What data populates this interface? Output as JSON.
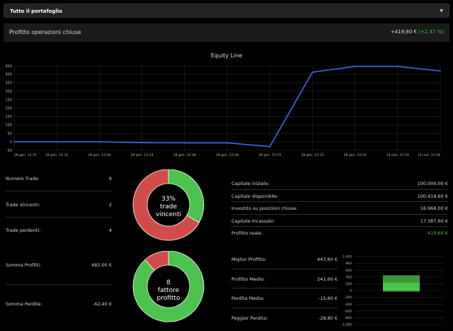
{
  "portfolio_select": {
    "value": "Tutto il portafoglio"
  },
  "closed_profit": {
    "label": "Profitto operazioni chiuse",
    "value": "+419,60 €",
    "pct": "(+2,47 %)"
  },
  "chart_data": {
    "type": "line",
    "title": "Equity Line",
    "x": [
      "28 gen. 12:31",
      "28 gen. 12:32",
      "28 gen. 12:34",
      "28 gen. 12:34",
      "28 gen. 12:36",
      "28 gen. 12:39",
      "28 gen. 15:15",
      "28 gen. 15:15",
      "28 gen. 15:16",
      "14 mar. 11:54",
      "14 mar. 11:56"
    ],
    "series": [
      {
        "values": [
          0,
          0,
          0,
          -5,
          -6,
          -6,
          -28,
          413,
          447,
          447,
          420
        ]
      }
    ],
    "ylim": [
      -50,
      450
    ],
    "yticks": [
      -50,
      0,
      50,
      100,
      150,
      200,
      250,
      300,
      350,
      400,
      450
    ],
    "color": "#3d6cf0",
    "grid": true
  },
  "left_stats": [
    {
      "label": "Numero Trade:",
      "value": "6"
    },
    {
      "label": "Trade Vincenti:",
      "value": "2"
    },
    {
      "label": "Trade perdenti:",
      "value": "4"
    }
  ],
  "left_stats2": [
    {
      "label": "Somma Profitti:",
      "value": "482,00 €"
    },
    {
      "label": "Somma Perdite:",
      "value": "-62,40 €"
    }
  ],
  "donut1": {
    "pct_win": 33.33,
    "line1": "33%",
    "line2": "trade",
    "line3": "vincenti"
  },
  "donut2": {
    "pct_win": 88.5,
    "line1": "8",
    "line2": "fattore",
    "line3": "profitto"
  },
  "colors": {
    "win": "#4cc34c",
    "loss": "#d24b4b",
    "bg": "#000000",
    "accent": "#3d6cf0"
  },
  "capital_stats": [
    {
      "label": "Capitale iniziale:",
      "value": "100.000,00 €"
    },
    {
      "label": "Capitale disponibile:",
      "value": "100.419,60 €"
    },
    {
      "label": "Investito su posizioni chiuse:",
      "value": "16.968,00 €"
    },
    {
      "label": "Capitale Incassato:",
      "value": "17.387,60 €"
    },
    {
      "label": "Profitto reale:",
      "value": "419,60 €"
    }
  ],
  "profit_stats": [
    {
      "label": "Miglior Profitto:",
      "value": "447,60 €"
    },
    {
      "label": "Profitto Medio:",
      "value": "241,00 €"
    },
    {
      "label": "Perdita Media:",
      "value": "-15,60 €"
    },
    {
      "label": "Peggior Perdita:",
      "value": "-28,80 €"
    }
  ],
  "mini_chart": {
    "yticks": [
      "1.000",
      "800",
      "600",
      "400",
      "200",
      "0",
      "-200",
      "-400",
      "-600",
      "-800",
      "-1.000"
    ],
    "box": {
      "low": -28.8,
      "q1": -15.6,
      "q3": 241,
      "high": 447.6
    }
  }
}
